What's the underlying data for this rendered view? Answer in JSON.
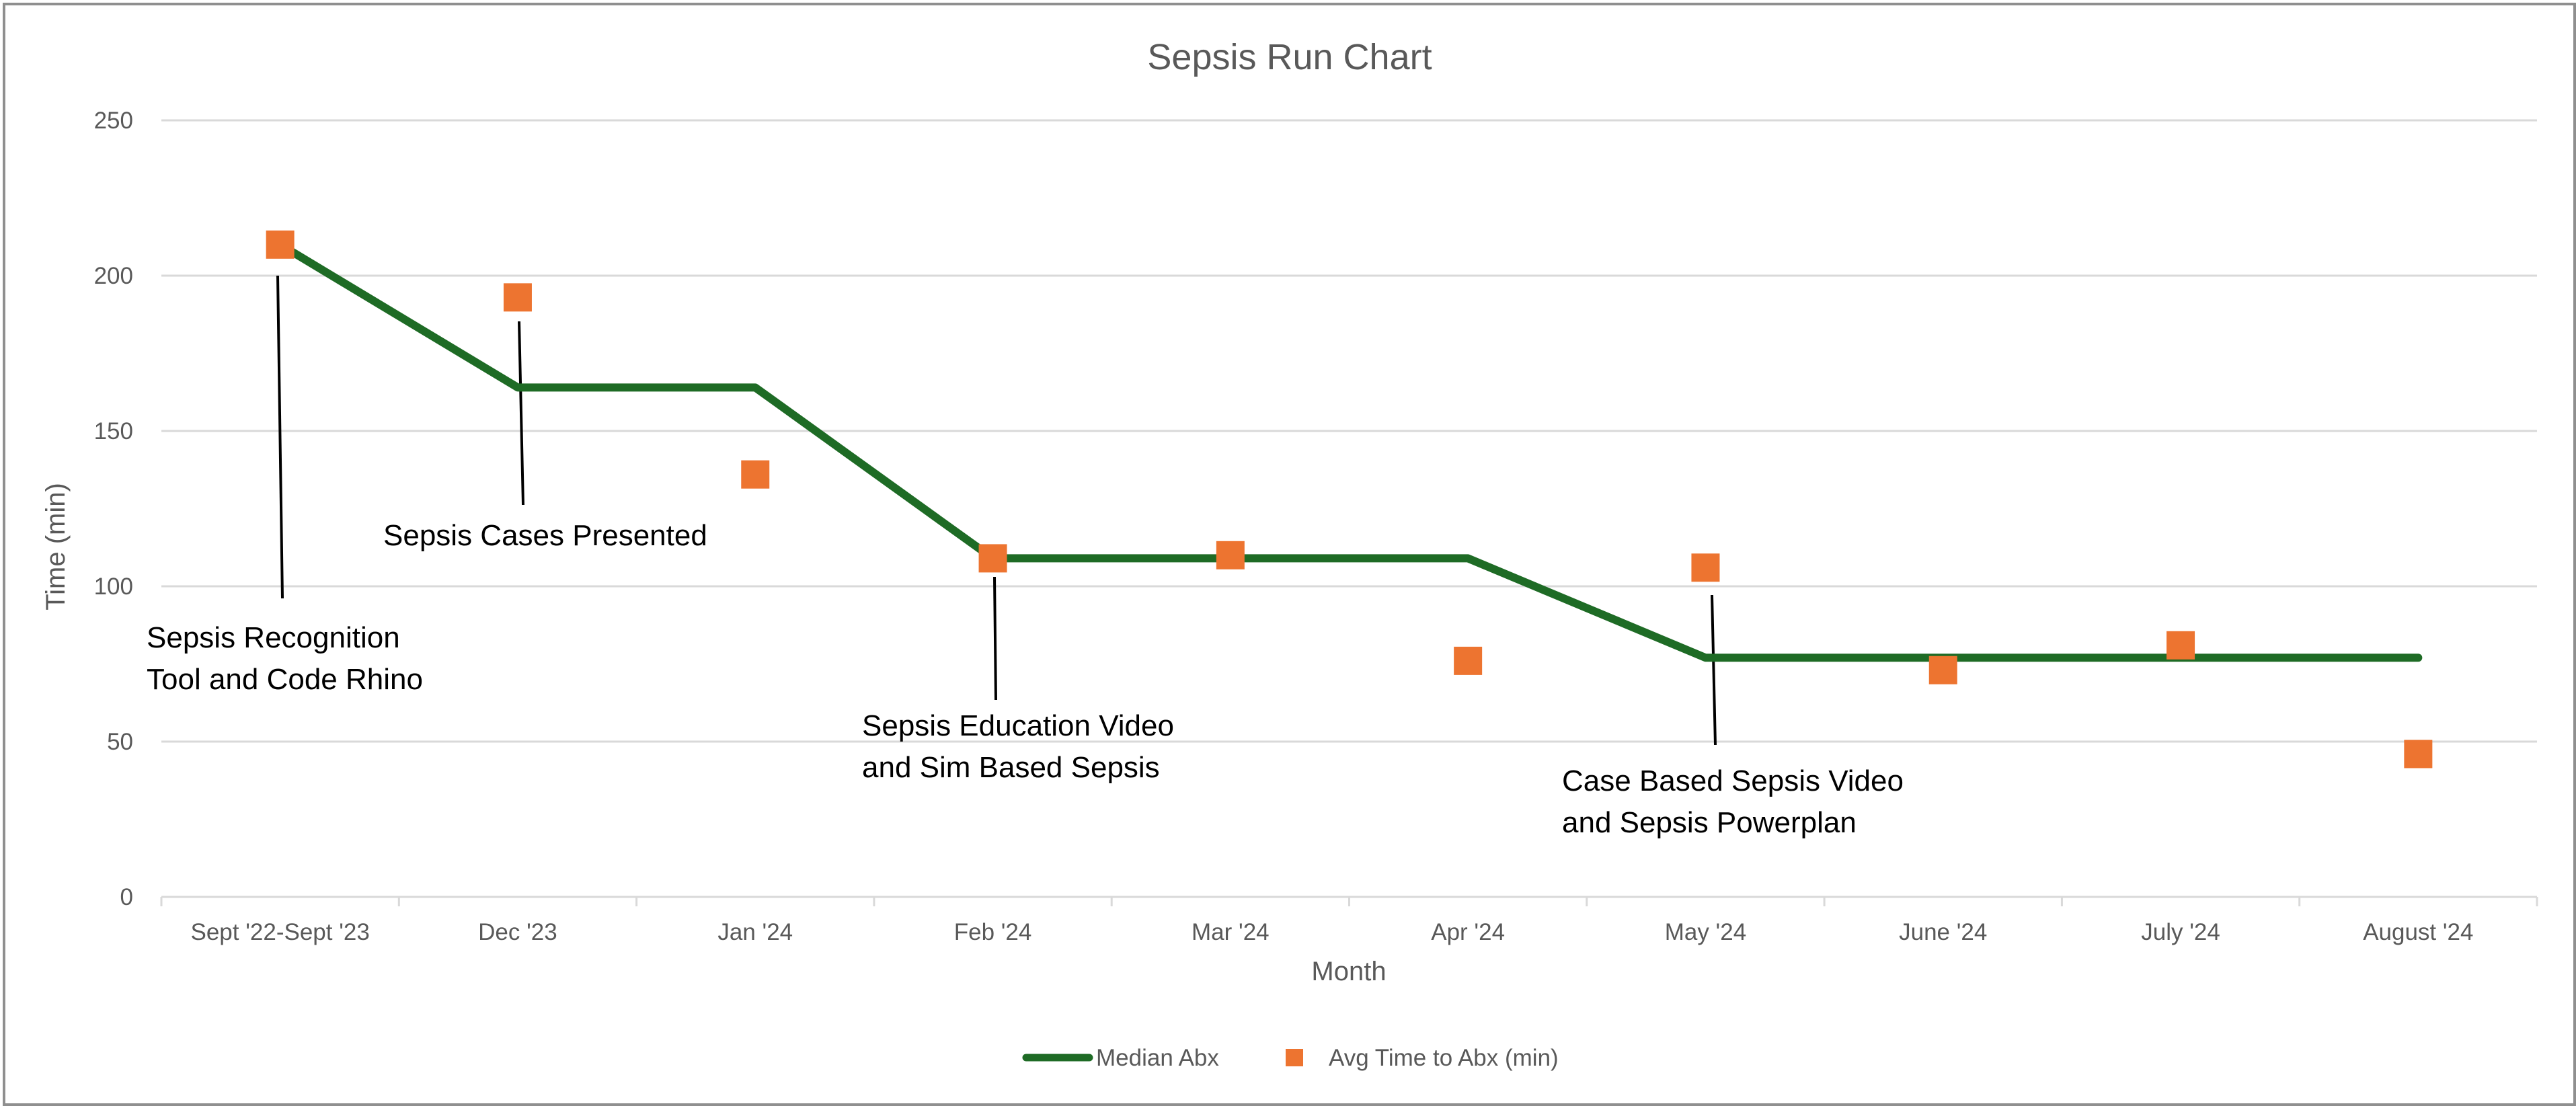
{
  "chart_data": {
    "type": "line",
    "title": "Sepsis Run Chart",
    "xlabel": "Month",
    "ylabel": "Time (min)",
    "ylim": [
      0,
      250
    ],
    "yticks": [
      0,
      50,
      100,
      150,
      200,
      250
    ],
    "grid": true,
    "legend_position": "bottom",
    "categories": [
      "Sept '22-Sept '23",
      "Dec '23",
      "Jan '24",
      "Feb '24",
      "Mar '24",
      "Apr '24",
      "May '24",
      "June '24",
      "July '24",
      "August '24"
    ],
    "series": [
      {
        "name": "Median Abx",
        "kind": "line",
        "color": "#1e6b25",
        "values": [
          210,
          164,
          164,
          109,
          109,
          109,
          77,
          77,
          77,
          77
        ]
      },
      {
        "name": "Avg Time to Abx (min)",
        "kind": "scatter",
        "color": "#ed7430",
        "marker": "square",
        "values": [
          210,
          193,
          136,
          109,
          110,
          76,
          106,
          73,
          81,
          46
        ]
      }
    ],
    "annotations": [
      {
        "lines": [
          "Sepsis Recognition",
          "Tool and Code Rhino"
        ],
        "category_index": 0
      },
      {
        "lines": [
          "Sepsis Cases Presented"
        ],
        "category_index": 1
      },
      {
        "lines": [
          "Sepsis Education Video",
          "and Sim Based Sepsis"
        ],
        "category_index": 3
      },
      {
        "lines": [
          "Case Based Sepsis Video",
          "and Sepsis Powerplan"
        ],
        "category_index": 6
      }
    ]
  }
}
